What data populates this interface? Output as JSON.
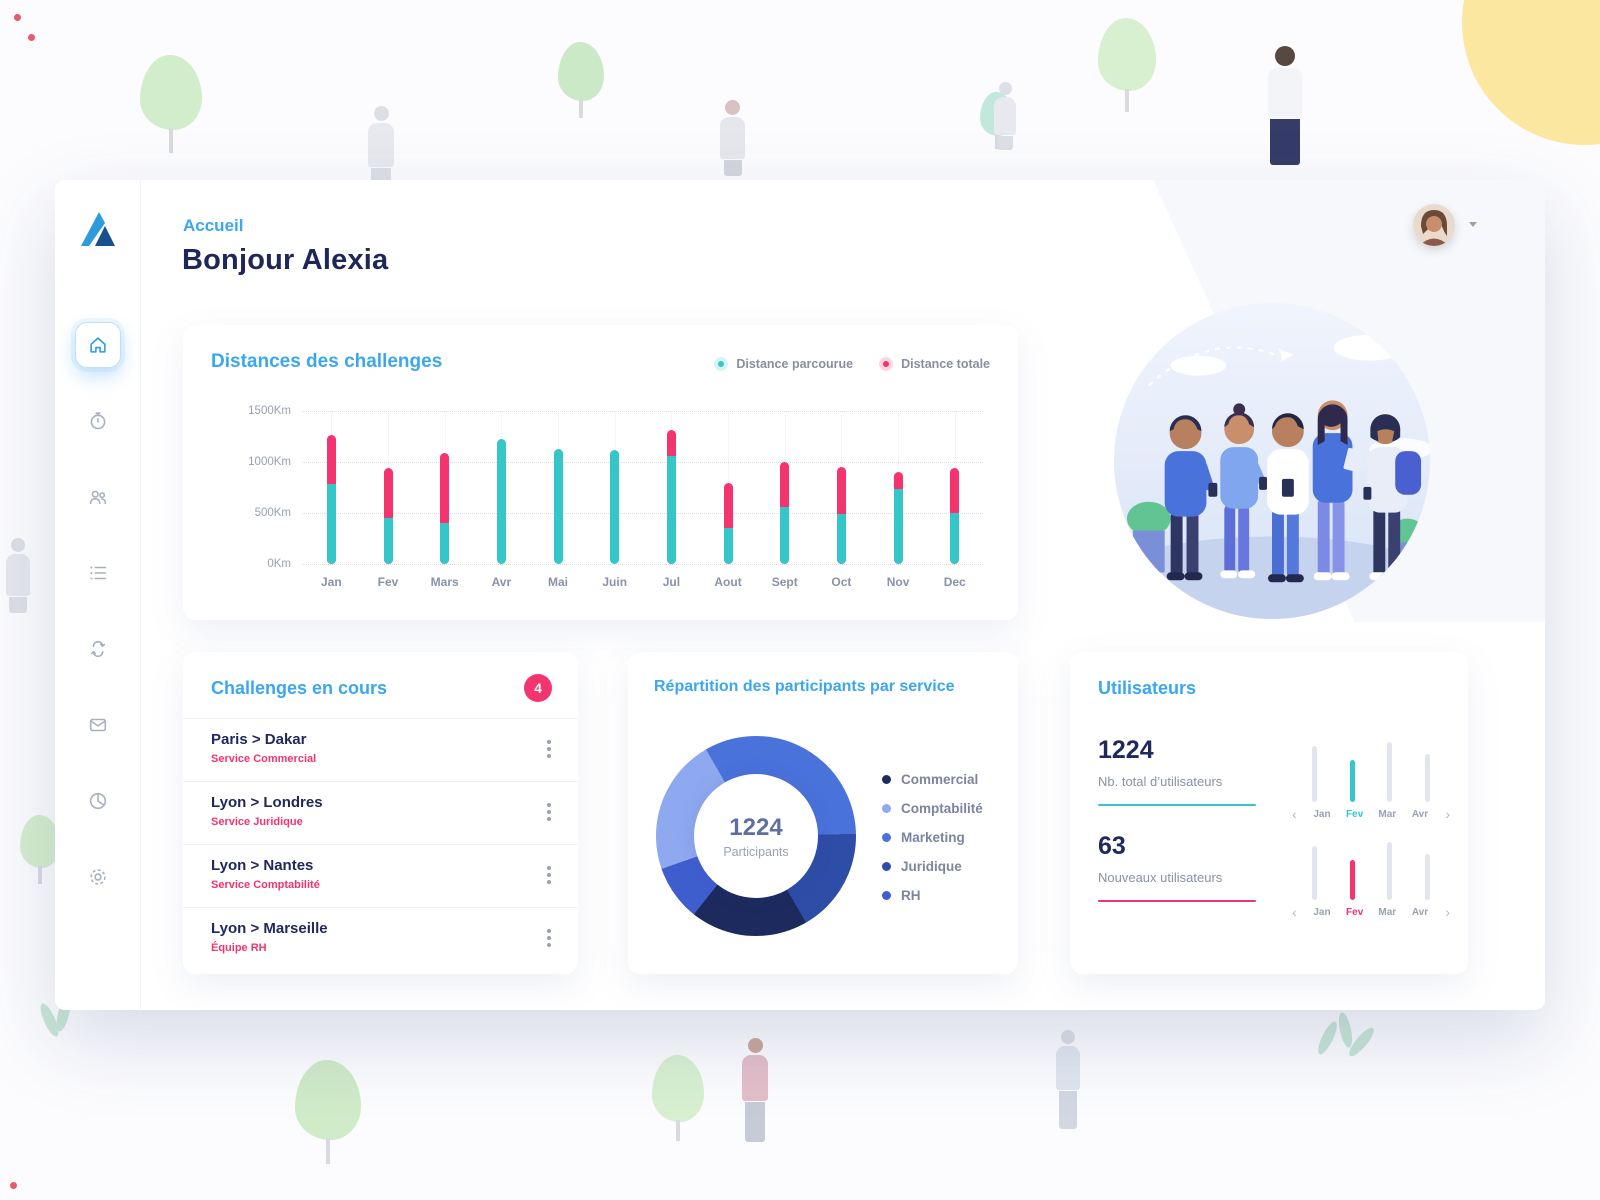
{
  "window": {
    "breadcrumb": "Accueil",
    "greeting": "Bonjour Alexia"
  },
  "sidebar": {
    "items": [
      {
        "icon": "home",
        "active": true
      },
      {
        "icon": "timer",
        "active": false
      },
      {
        "icon": "users",
        "active": false
      },
      {
        "icon": "list",
        "active": false
      },
      {
        "icon": "exchange",
        "active": false
      },
      {
        "icon": "mail",
        "active": false
      },
      {
        "icon": "pie",
        "active": false
      },
      {
        "icon": "gear",
        "active": false
      }
    ]
  },
  "distances_card": {
    "title": "Distances des challenges",
    "legend": [
      {
        "label": "Distance parcourue",
        "color": "#35C6C9"
      },
      {
        "label": "Distance totale",
        "color": "#F4346F"
      }
    ]
  },
  "chart_data": [
    {
      "id": "distances",
      "type": "bar",
      "title": "Distances des challenges",
      "categories": [
        "Jan",
        "Fev",
        "Mars",
        "Avr",
        "Mai",
        "Juin",
        "Jul",
        "Aout",
        "Sept",
        "Oct",
        "Nov",
        "Dec"
      ],
      "series": [
        {
          "name": "Distance parcourue",
          "color": "#35C6C9",
          "values": [
            780,
            450,
            400,
            1230,
            1130,
            1120,
            1060,
            350,
            560,
            490,
            740,
            500
          ]
        },
        {
          "name": "Distance totale",
          "color": "#F4346F",
          "values": [
            1260,
            940,
            1090,
            1230,
            1130,
            1120,
            1310,
            790,
            1000,
            950,
            900,
            940
          ]
        }
      ],
      "yticks": [
        {
          "value": 1500,
          "label": "1500Km"
        },
        {
          "value": 1000,
          "label": "1000Km"
        },
        {
          "value": 500,
          "label": "500Km"
        },
        {
          "value": 0,
          "label": "0Km"
        }
      ],
      "ylim": [
        0,
        1500
      ],
      "grid": "dotted",
      "legend_position": "top-right"
    },
    {
      "id": "participants",
      "type": "pie",
      "title": "Répartition des participants par service",
      "center_value": "1224",
      "center_label": "Participants",
      "slices": [
        {
          "label": "Marketing",
          "value": 33,
          "color": "#4A72DB"
        },
        {
          "label": "Juridique",
          "value": 17,
          "color": "#2E4DA7"
        },
        {
          "label": "Commercial",
          "value": 19,
          "color": "#1C2A5E"
        },
        {
          "label": "RH",
          "value": 9,
          "color": "#3F5ECE"
        },
        {
          "label": "Comptabilité",
          "value": 22,
          "color": "#8FA9F0"
        }
      ]
    },
    {
      "id": "total-users",
      "type": "bar",
      "title": "Nb. total d’utilisateurs",
      "categories": [
        "Jan",
        "Fev",
        "Mar",
        "Avr"
      ],
      "values": [
        56,
        42,
        60,
        48
      ],
      "highlight": {
        "category": "Fev",
        "color": "#35C6C9"
      }
    },
    {
      "id": "new-users",
      "type": "bar",
      "title": "Nouveaux utilisateurs",
      "categories": [
        "Jan",
        "Fev",
        "Mar",
        "Avr"
      ],
      "values": [
        54,
        40,
        58,
        46
      ],
      "highlight": {
        "category": "Fev",
        "color": "#F4346F"
      }
    }
  ],
  "challenges_card": {
    "title": "Challenges en cours",
    "badge_count": "4",
    "items": [
      {
        "route": "Paris > Dakar",
        "team": "Service Commercial"
      },
      {
        "route": "Lyon > Londres",
        "team": "Service Juridique"
      },
      {
        "route": "Lyon > Nantes",
        "team": "Service Comptabilité"
      },
      {
        "route": "Lyon > Marseille",
        "team": "Équipe RH"
      }
    ]
  },
  "participants_card": {
    "title": "Répartition des participants par service",
    "center_value": "1224",
    "center_label": "Participants",
    "legend": [
      {
        "label": "Commercial",
        "color": "#1C2A5E"
      },
      {
        "label": "Comptabilité",
        "color": "#8FA9F0"
      },
      {
        "label": "Marketing",
        "color": "#4A72DB"
      },
      {
        "label": "Juridique",
        "color": "#2E4DA7"
      },
      {
        "label": "RH",
        "color": "#3F5ECE"
      }
    ]
  },
  "users_card": {
    "title": "Utilisateurs",
    "prev_icon": "‹",
    "next_icon": "›",
    "stats": [
      {
        "value": "1224",
        "label": "Nb. total d’utilisateurs",
        "accent": "#35C6C9",
        "highlight_month": "Fev"
      },
      {
        "value": "63",
        "label": "Nouveaux utilisateurs",
        "accent": "#F4346F",
        "highlight_month": "Fev"
      }
    ]
  }
}
